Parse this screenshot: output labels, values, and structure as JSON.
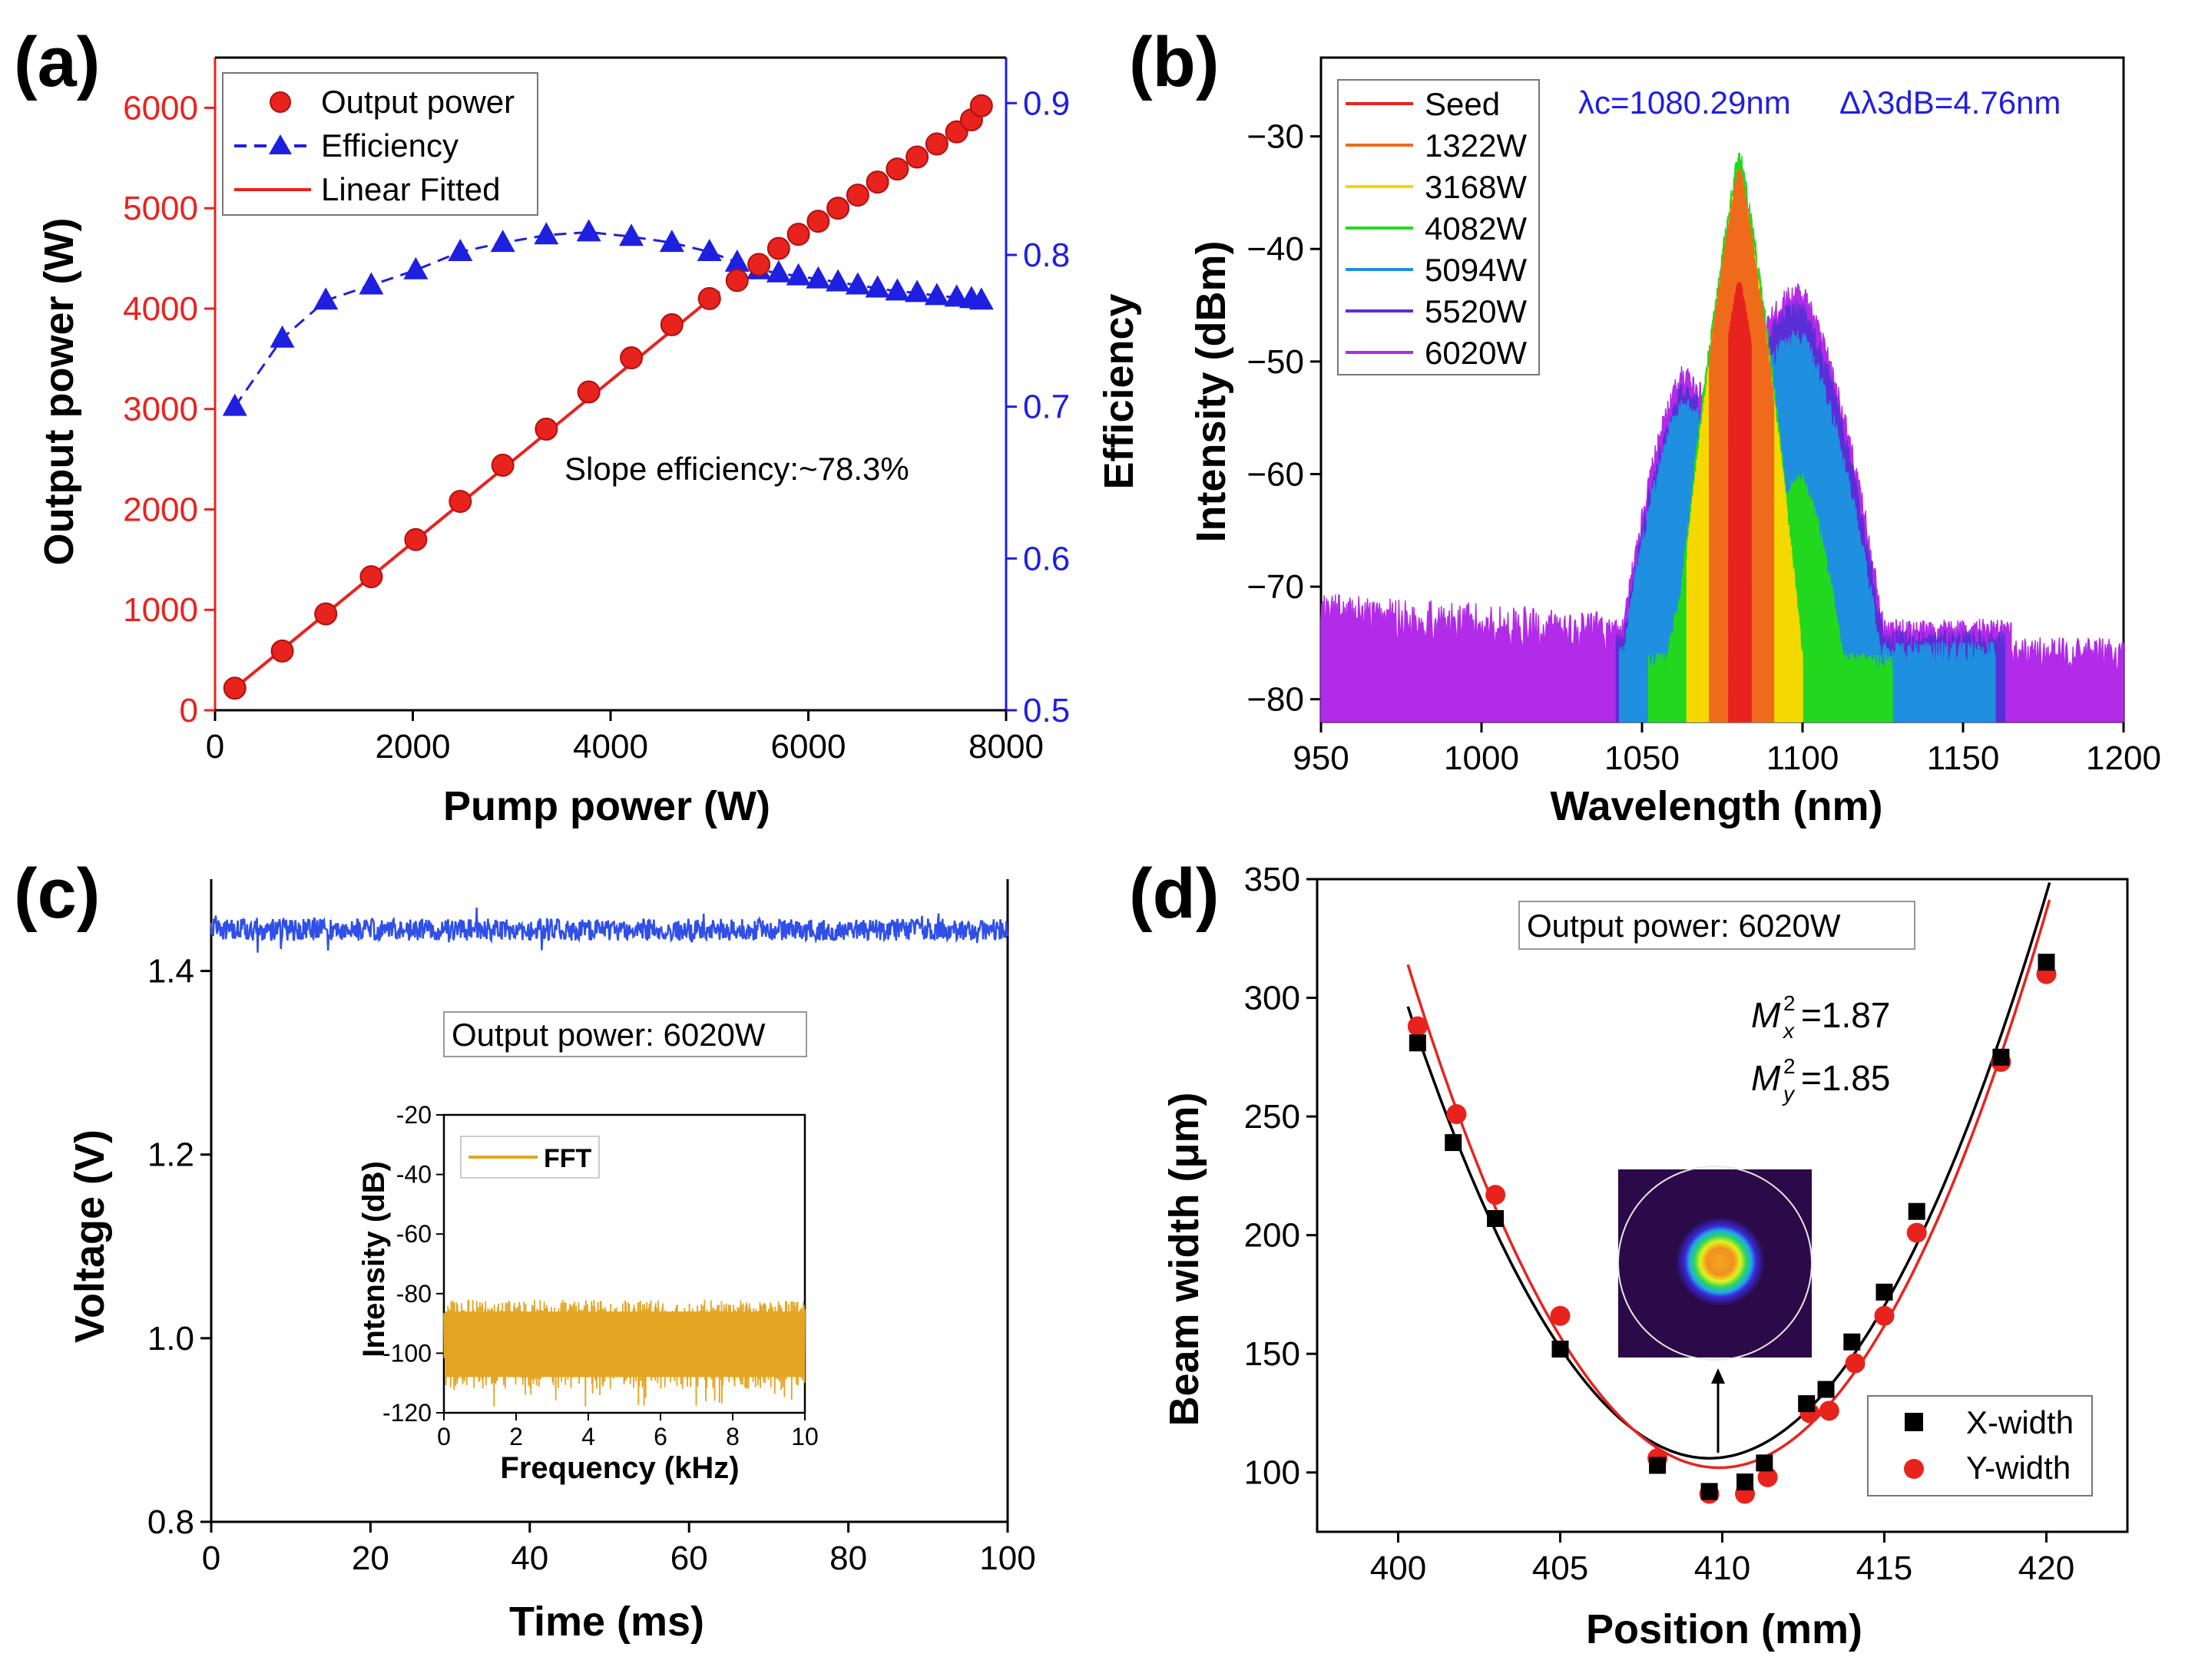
{
  "colors": {
    "red": "#e8231e",
    "blue": "#1f1fe0",
    "line_blue": "#2f4fe8",
    "fft": "#e3a521",
    "black": "#000000"
  },
  "chart_data": [
    {
      "id": "a",
      "panel_label": "(a)",
      "type": "line",
      "xlabel": "Pump power (W)",
      "ylabel": "Output power (W)",
      "ylabel2": "Efficiency",
      "xlim": [
        0,
        8000
      ],
      "ylim": [
        0,
        6500
      ],
      "y2lim": [
        0.5,
        0.93
      ],
      "xticks": [
        "0",
        "2000",
        "4000",
        "6000",
        "8000"
      ],
      "yticks": [
        "0",
        "1000",
        "2000",
        "3000",
        "4000",
        "5000",
        "6000"
      ],
      "y2ticks": [
        "0.5",
        "0.6",
        "0.7",
        "0.8",
        "0.9"
      ],
      "legend": [
        "Output power",
        "Efficiency",
        "Linear Fitted"
      ],
      "annotation": "Slope efficiency:~78.3%",
      "series": [
        {
          "name": "Output power",
          "axis": "left",
          "x": [
            200,
            680,
            1120,
            1580,
            2030,
            2480,
            2910,
            3350,
            3780,
            4210,
            4620,
            5000,
            5280,
            5500,
            5700,
            5900,
            6100,
            6300,
            6500,
            6700,
            6900,
            7100,
            7300,
            7500,
            7650,
            7750
          ],
          "y": [
            220,
            590,
            960,
            1330,
            1700,
            2080,
            2440,
            2800,
            3170,
            3510,
            3840,
            4100,
            4280,
            4440,
            4600,
            4740,
            4870,
            5000,
            5130,
            5260,
            5390,
            5510,
            5640,
            5760,
            5880,
            6020
          ]
        },
        {
          "name": "Efficiency",
          "axis": "right",
          "x": [
            200,
            680,
            1120,
            1580,
            2030,
            2480,
            2910,
            3350,
            3780,
            4210,
            4620,
            5000,
            5280,
            5500,
            5700,
            5900,
            6100,
            6300,
            6500,
            6700,
            6900,
            7100,
            7300,
            7500,
            7650,
            7750
          ],
          "y": [
            0.7,
            0.745,
            0.77,
            0.78,
            0.79,
            0.802,
            0.808,
            0.813,
            0.815,
            0.812,
            0.808,
            0.802,
            0.795,
            0.79,
            0.788,
            0.786,
            0.784,
            0.782,
            0.78,
            0.778,
            0.776,
            0.775,
            0.773,
            0.772,
            0.771,
            0.77
          ]
        },
        {
          "name": "Linear Fitted",
          "axis": "left",
          "x": [
            200,
            5100
          ],
          "y": [
            220,
            4170
          ]
        }
      ]
    },
    {
      "id": "b",
      "panel_label": "(b)",
      "type": "line",
      "xlabel": "Wavelength (nm)",
      "ylabel": "Intensity (dBm)",
      "xlim": [
        950,
        1200
      ],
      "ylim": [
        -82,
        -23
      ],
      "xticks": [
        "950",
        "1000",
        "1050",
        "1100",
        "1150",
        "1200"
      ],
      "yticks": [
        "-80",
        "-70",
        "-60",
        "-50",
        "-40",
        "-30"
      ],
      "annotation_center": "λc=1080.29nm",
      "annotation_bw": "Δλ3dB=4.76nm",
      "series": [
        {
          "name": "Seed",
          "color": "#e8231e",
          "center": 1080.29,
          "peak": -43,
          "floor": -78,
          "edge_l": 1077,
          "edge_r": 1084,
          "shoulder_l": [
            0,
            0,
            0
          ],
          "shoulder_r": [
            0,
            0,
            0
          ]
        },
        {
          "name": "1322W",
          "color": "#f06a1c",
          "center": 1080.29,
          "peak": -33,
          "floor": -77,
          "edge_l": 1071,
          "edge_r": 1091,
          "shoulder_l": [
            0,
            0,
            0
          ],
          "shoulder_r": [
            0,
            0,
            0
          ]
        },
        {
          "name": "3168W",
          "color": "#f5d800",
          "center": 1080.29,
          "peak": -33,
          "floor": -77,
          "edge_l": 1064,
          "edge_r": 1100,
          "shoulder_l": [
            0,
            0,
            0
          ],
          "shoulder_r": [
            0,
            0,
            0
          ]
        },
        {
          "name": "4082W",
          "color": "#22d81e",
          "center": 1080.29,
          "peak": -31.5,
          "floor": -77,
          "edge_l": 1052,
          "edge_r": 1128,
          "shoulder_l": [
            1064,
            -70,
            6
          ],
          "shoulder_r": [
            1100,
            -61,
            6
          ]
        },
        {
          "name": "5094W",
          "color": "#1f8fe0",
          "center": 1080.29,
          "peak": -33,
          "floor": -76,
          "edge_l": 1043,
          "edge_r": 1160,
          "shoulder_l": [
            1062,
            -54,
            9
          ],
          "shoulder_r": [
            1100,
            -48,
            9
          ]
        },
        {
          "name": "5520W",
          "color": "#5a2ed6",
          "center": 1080.29,
          "peak": -33,
          "floor": -75,
          "edge_l": 1042,
          "edge_r": 1163,
          "shoulder_l": [
            1062,
            -53,
            9
          ],
          "shoulder_r": [
            1100,
            -45.5,
            9
          ]
        },
        {
          "name": "6020W",
          "color": "#b12be8",
          "center": 1080.29,
          "peak": -32.5,
          "floor": -74,
          "edge_l": 1040,
          "edge_r": 1165,
          "shoulder_l": [
            1062,
            -51.5,
            9
          ],
          "shoulder_r": [
            1100,
            -44,
            9
          ]
        }
      ]
    },
    {
      "id": "c",
      "panel_label": "(c)",
      "type": "line",
      "xlabel": "Time (ms)",
      "ylabel": "Voltage (V)",
      "xlim": [
        0,
        100
      ],
      "ylim": [
        0.8,
        1.5
      ],
      "xticks": [
        "0",
        "20",
        "40",
        "60",
        "80",
        "100"
      ],
      "yticks": [
        "0.8",
        "1.0",
        "1.2",
        "1.4"
      ],
      "annotation": "Output power: 6020W",
      "series": [
        {
          "name": "Voltage",
          "mean": 1.445,
          "noise": 0.012
        }
      ],
      "inset": {
        "xlabel": "Frequency (kHz)",
        "ylabel": "Intensity (dB)",
        "xlim": [
          0,
          10
        ],
        "ylim": [
          -120,
          -20
        ],
        "xticks": [
          "0",
          "2",
          "4",
          "6",
          "8",
          "10"
        ],
        "yticks": [
          "-20",
          "-40",
          "-60",
          "-80",
          "-100",
          "-120"
        ],
        "legend": "FFT",
        "series": [
          {
            "name": "FFT",
            "upper": -82,
            "lower": -112
          }
        ]
      }
    },
    {
      "id": "d",
      "panel_label": "(d)",
      "type": "scatter",
      "xlabel": "Position (mm)",
      "ylabel": "Beam width (μm)",
      "xlim": [
        397.5,
        422.5
      ],
      "ylim": [
        75,
        350
      ],
      "xticks": [
        "400",
        "405",
        "410",
        "415",
        "420"
      ],
      "yticks": [
        "100",
        "150",
        "200",
        "250",
        "300",
        "350"
      ],
      "annotation": "Output power: 6020W",
      "mx": "=1.87",
      "my": "=1.85",
      "series": [
        {
          "name": "X-width",
          "x": [
            400.6,
            401.7,
            403.0,
            405.0,
            408.0,
            409.6,
            410.7,
            411.3,
            412.6,
            413.2,
            414.0,
            415.0,
            416.0,
            418.6,
            420.0
          ],
          "y": [
            281,
            239,
            207,
            152,
            103,
            92,
            96,
            104,
            129,
            135,
            155,
            176,
            210,
            275,
            315
          ]
        },
        {
          "name": "Y-width",
          "x": [
            400.6,
            401.8,
            403.0,
            405.0,
            408.0,
            409.6,
            410.7,
            411.4,
            412.7,
            413.3,
            414.1,
            415.0,
            416.0,
            418.6,
            420.0
          ],
          "y": [
            288,
            251,
            217,
            166,
            106,
            91,
            91,
            98,
            125,
            126,
            146,
            166,
            201,
            273,
            310
          ]
        }
      ],
      "fits": [
        {
          "name": "X-fit",
          "color": "#000000",
          "x0": 409.6,
          "min": 106,
          "a": 2.2
        },
        {
          "name": "Y-fit",
          "color": "#e8231e",
          "x0": 409.9,
          "min": 102,
          "a": 2.3
        }
      ]
    }
  ]
}
